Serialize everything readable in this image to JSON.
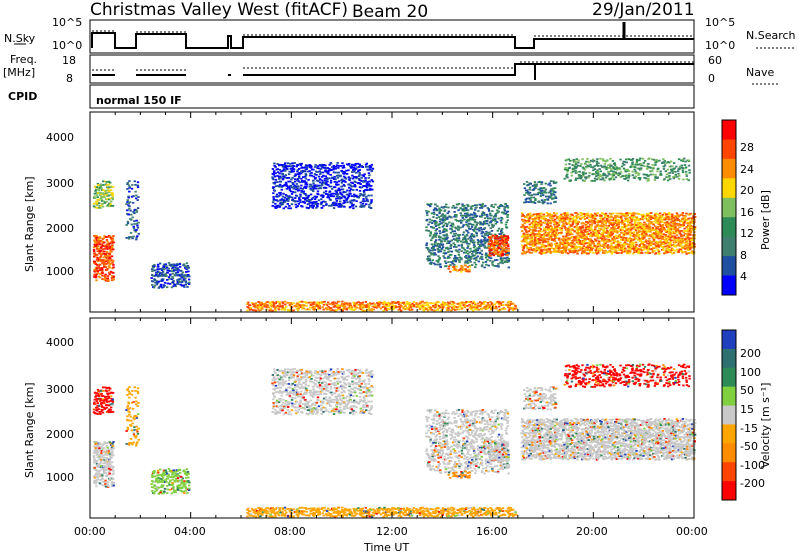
{
  "header": {
    "title": "Christmas Valley West (fitACF)",
    "beam": "Beam 20",
    "date": "29/Jan/2011"
  },
  "strip_panels": {
    "nsky_label": "N.Sky",
    "nsearch_label": "N.Search",
    "nsky_ticks": [
      "10^5",
      "10^0"
    ],
    "nsearch_ticks": [
      "10^5",
      "10^0"
    ],
    "freq_label": "Freq.",
    "freq_unit": "[MHz]",
    "freq_ticks": [
      "18",
      "8"
    ],
    "nave_label": "Nave",
    "nave_ticks": [
      "60",
      "0"
    ],
    "cpid_label": "CPID",
    "cpid_value": "normal 150 IF"
  },
  "colors": {
    "power_scale": [
      "#0000ff",
      "#1f4fa0",
      "#3f7f6f",
      "#2e8b57",
      "#7fbf5f",
      "#ffd700",
      "#ff8c00",
      "#ff4500",
      "#ff0000"
    ],
    "velocity_scale": [
      "#1f3fbf",
      "#2e6f6f",
      "#2e8b57",
      "#7fcf3f",
      "#c8c8c8",
      "#ffa500",
      "#ff8c00",
      "#ff4500",
      "#ff0000"
    ]
  },
  "chart_data": [
    {
      "type": "heatmap",
      "name": "power",
      "ylabel": "Slant Range [km]",
      "yticks": [
        "1000",
        "2000",
        "3000",
        "4000"
      ],
      "ylim": [
        200,
        4600
      ],
      "xlim": [
        0,
        24
      ],
      "colorbar_label": "Power [dB]",
      "colorbar_ticks": [
        "4",
        "8",
        "12",
        "16",
        "20",
        "24",
        "28"
      ],
      "grid": false
    },
    {
      "type": "heatmap",
      "name": "velocity",
      "ylabel": "Slant Range [km]",
      "yticks": [
        "1000",
        "2000",
        "3000",
        "4000"
      ],
      "ylim": [
        200,
        4600
      ],
      "xlim": [
        0,
        24
      ],
      "colorbar_label": "Velocity [m s⁻¹]",
      "colorbar_ticks": [
        "200",
        "100",
        "50",
        "15",
        "-15",
        "-50",
        "-100",
        "-200"
      ],
      "grid": false
    }
  ],
  "x_axis": {
    "label": "Time UT",
    "ticks": [
      "00:00",
      "04:00",
      "08:00",
      "12:00",
      "16:00",
      "20:00",
      "00:00"
    ]
  }
}
